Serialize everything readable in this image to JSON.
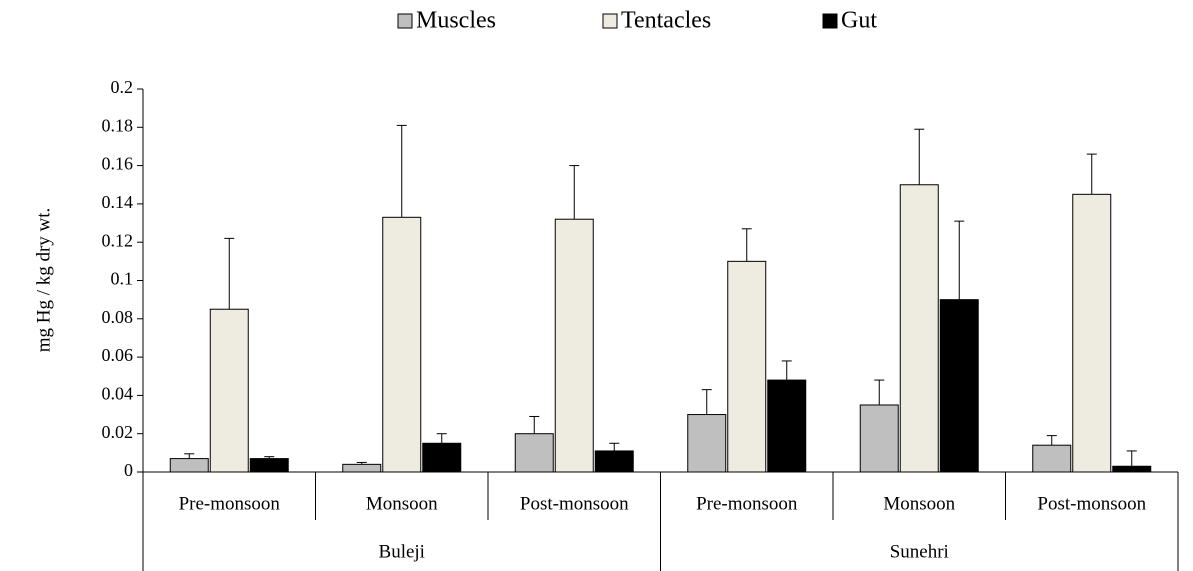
{
  "chart_data": {
    "type": "bar",
    "y_label": "mg Hg / kg dry wt.",
    "groups": [
      {
        "name": "Buleji",
        "categories": [
          "Pre-monsoon",
          "Monsoon",
          "Post-monsoon"
        ]
      },
      {
        "name": "Sunehri",
        "categories": [
          "Pre-monsoon",
          "Monsoon",
          "Post-monsoon"
        ]
      }
    ],
    "series": [
      {
        "name": "Muscles",
        "color": "#bfbfbf",
        "values": [
          0.007,
          0.004,
          0.02,
          0.03,
          0.035,
          0.014
        ],
        "errors": [
          0.0025,
          0.001,
          0.009,
          0.013,
          0.013,
          0.005
        ]
      },
      {
        "name": "Tentacles",
        "color": "#eeece1",
        "values": [
          0.085,
          0.133,
          0.132,
          0.11,
          0.15,
          0.145
        ],
        "errors": [
          0.037,
          0.048,
          0.028,
          0.017,
          0.029,
          0.021
        ]
      },
      {
        "name": "Gut",
        "color": "#000000",
        "values": [
          0.007,
          0.015,
          0.011,
          0.048,
          0.09,
          0.003
        ],
        "errors": [
          0.001,
          0.005,
          0.004,
          0.01,
          0.041,
          0.008
        ]
      }
    ],
    "ylim": [
      0,
      0.2
    ],
    "yticks": [
      0,
      0.02,
      0.04,
      0.06,
      0.08,
      0.1,
      0.12,
      0.14,
      0.16,
      0.18,
      0.2
    ],
    "grid": false,
    "legend": "top"
  }
}
